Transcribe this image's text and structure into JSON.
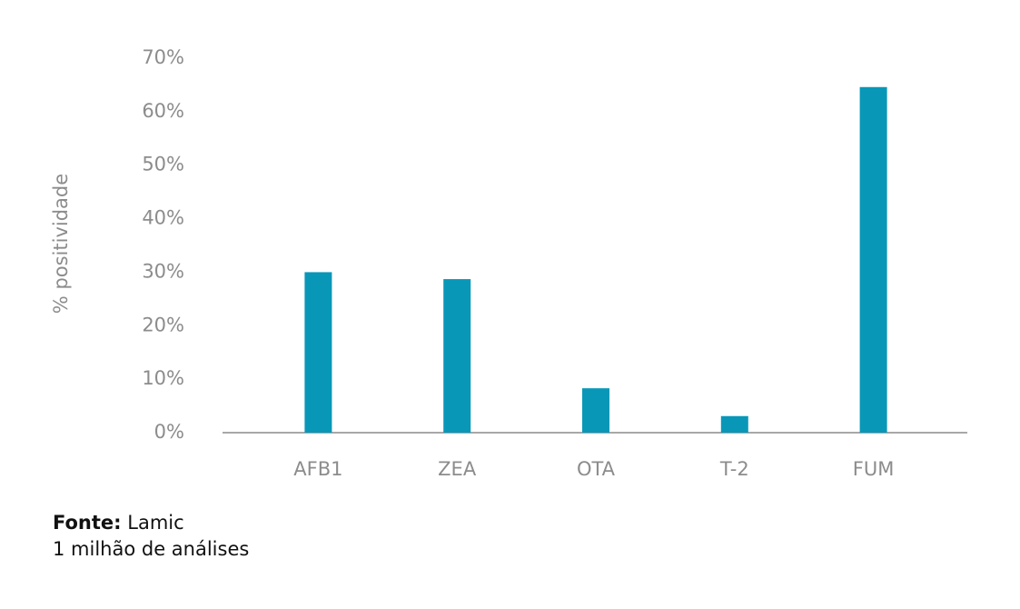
{
  "chart_data": {
    "type": "bar",
    "y_label": "% positividade",
    "categories": [
      "AFB1",
      "ZEA",
      "OTA",
      "T-2",
      "FUM"
    ],
    "values": [
      30,
      28.7,
      8.3,
      3.1,
      64.6
    ],
    "color": "#0997b8",
    "ylim": [
      0,
      70
    ],
    "yticks": [
      {
        "value": 0,
        "label": "0%"
      },
      {
        "value": 10,
        "label": "10%"
      },
      {
        "value": 20,
        "label": "20%"
      },
      {
        "value": 30,
        "label": "30%"
      },
      {
        "value": 40,
        "label": "40%"
      },
      {
        "value": 50,
        "label": "50%"
      },
      {
        "value": 60,
        "label": "60%"
      },
      {
        "value": 70,
        "label": "70%"
      }
    ],
    "grid": false,
    "source_label": "Fonte:",
    "source": "Lamic",
    "note": "1 milhão de análises"
  }
}
